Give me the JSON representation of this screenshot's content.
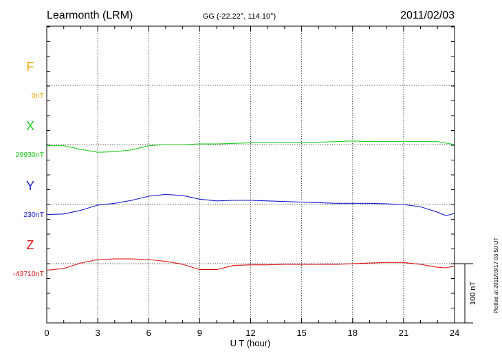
{
  "header": {
    "station": "Learmonth (LRM)",
    "coords": "GG (-22.22°, 114.10°)",
    "date": "2011/02/03"
  },
  "plotted_note": "Plotted at 2011/03/17 03:50 UT",
  "chart_data": {
    "type": "line",
    "xlabel": "U T (hour)",
    "xlim": [
      0,
      24
    ],
    "xticks": [
      "0",
      "3",
      "6",
      "9",
      "12",
      "15",
      "18",
      "21",
      "24"
    ],
    "scale_bar_label": "100 nT",
    "series": [
      {
        "name": "F",
        "baseline_label": "0nT",
        "color": "#f5a300",
        "x": [],
        "y": []
      },
      {
        "name": "X",
        "baseline_label": "29930nT",
        "color": "#22cc22",
        "x": [
          0,
          1,
          2,
          3,
          4,
          5,
          6,
          7,
          8,
          9,
          10,
          11,
          12,
          13,
          14,
          15,
          16,
          17,
          18,
          19,
          20,
          21,
          22,
          23,
          24
        ],
        "y": [
          29928,
          29928,
          29922,
          29917,
          29918,
          29921,
          29928,
          29930,
          29930,
          29931,
          29931,
          29932,
          29933,
          29933,
          29933,
          29934,
          29934,
          29935,
          29936,
          29935,
          29935,
          29935,
          29935,
          29935,
          29930
        ]
      },
      {
        "name": "Y",
        "baseline_label": "230nT",
        "color": "#1a1acc",
        "x": [
          0,
          1,
          2,
          3,
          4,
          5,
          6,
          7,
          8,
          9,
          10,
          11,
          12,
          13,
          14,
          15,
          16,
          17,
          18,
          19,
          20,
          21,
          22,
          23,
          23.5,
          24
        ],
        "y": [
          213,
          214,
          220,
          229,
          232,
          237,
          244,
          247,
          245,
          239,
          236,
          237,
          237,
          236,
          235,
          234,
          233,
          232,
          232,
          232,
          231,
          230,
          226,
          217,
          211,
          215
        ]
      },
      {
        "name": "Z",
        "baseline_label": "-43710nT",
        "color": "#dd1111",
        "x": [
          0,
          1,
          2,
          3,
          4,
          5,
          6,
          7,
          8,
          9,
          10,
          11,
          12,
          13,
          14,
          15,
          16,
          17,
          18,
          19,
          20,
          21,
          22,
          23,
          23.5,
          24
        ],
        "y": [
          -43721,
          -43718,
          -43709,
          -43703,
          -43702,
          -43702,
          -43703,
          -43706,
          -43711,
          -43720,
          -43720,
          -43713,
          -43712,
          -43712,
          -43711,
          -43711,
          -43711,
          -43711,
          -43710,
          -43709,
          -43708,
          -43708,
          -43711,
          -43716,
          -43717,
          -43714
        ]
      }
    ]
  }
}
